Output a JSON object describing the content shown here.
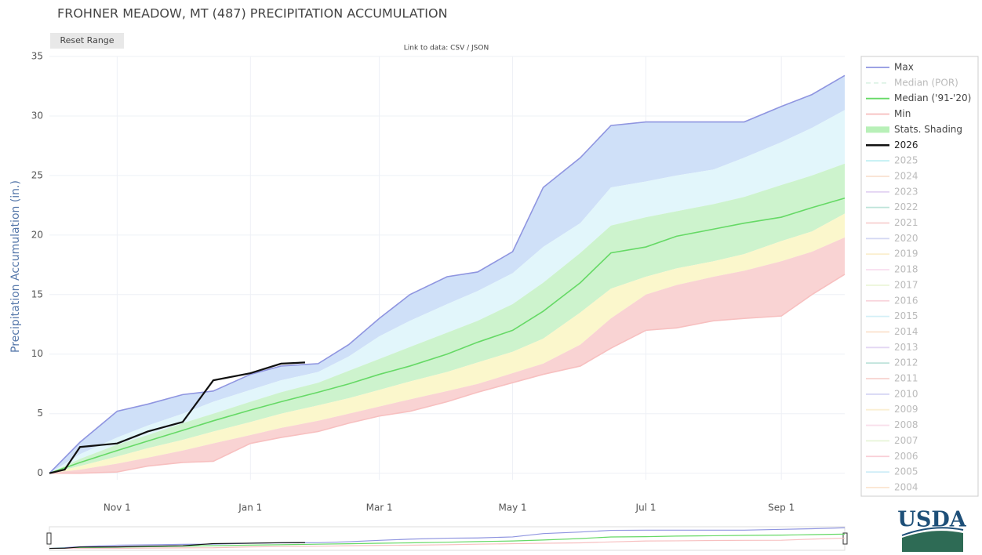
{
  "chart_data": {
    "type": "line",
    "title": "FROHNER MEADOW, MT (487) PRECIPITATION ACCUMULATION",
    "button": "Reset Range",
    "data_link": "Link to data: CSV / JSON",
    "logo": "USDA",
    "y_label": "Precipitation Accumulation (in.)",
    "x": [
      "Oct 1",
      "Oct 15",
      "Nov 1",
      "Nov 15",
      "Dec 1",
      "Dec 15",
      "Jan 1",
      "Jan 15",
      "Feb 1",
      "Feb 15",
      "Mar 1",
      "Mar 15",
      "Apr 1",
      "Apr 15",
      "May 1",
      "May 15",
      "Jun 1",
      "Jun 15",
      "Jul 1",
      "Jul 15",
      "Aug 1",
      "Aug 15",
      "Sep 1",
      "Sep 15",
      "Sep 30"
    ],
    "xticks": [
      "Nov 1",
      "Jan 1",
      "Mar 1",
      "May 1",
      "Jul 1",
      "Sep 1"
    ],
    "ylim": [
      -0.55,
      35
    ],
    "yticks": [
      0,
      5,
      10,
      15,
      20,
      25,
      30,
      35
    ],
    "grid": true,
    "legend": "right",
    "series": [
      {
        "name": "Max",
        "color": "#8f95e0",
        "values": [
          0,
          2.6,
          5.2,
          5.8,
          6.6,
          6.9,
          8.3,
          9.0,
          9.2,
          10.8,
          13.0,
          15.0,
          16.5,
          16.9,
          18.6,
          24.0,
          26.5,
          29.2,
          29.5,
          29.5,
          29.5,
          29.5,
          30.8,
          31.8,
          33.4
        ]
      },
      {
        "name": "Median (POR)",
        "color": "#bfe8cf",
        "dash": true,
        "visible": false
      },
      {
        "name": "Median ('91-'20)",
        "color": "#66d966",
        "values": [
          0,
          0.9,
          1.9,
          2.7,
          3.6,
          4.4,
          5.3,
          6.0,
          6.8,
          7.5,
          8.3,
          9.0,
          10.0,
          11.0,
          12.0,
          13.6,
          16.0,
          18.5,
          19.0,
          19.9,
          20.5,
          21.0,
          21.5,
          22.3,
          23.1
        ]
      },
      {
        "name": "Min",
        "color": "#f7c0c0",
        "values": [
          0,
          0,
          0.1,
          0.6,
          0.9,
          1.0,
          2.5,
          3.0,
          3.5,
          4.2,
          4.8,
          5.2,
          6.0,
          6.8,
          7.6,
          8.3,
          9.0,
          10.5,
          12.0,
          12.2,
          12.8,
          13.0,
          13.2,
          15.0,
          16.7
        ]
      },
      {
        "name": "Stats. Shading",
        "color": "#b8f0b8",
        "boundaries": [
          [
            0,
            1.6,
            3.0,
            4.0,
            5.0,
            6.0,
            7.0,
            7.8,
            8.5,
            9.8,
            11.5,
            12.8,
            14.2,
            15.3,
            16.8,
            19.0,
            21.0,
            24.0,
            24.5,
            25.0,
            25.5,
            26.5,
            27.8,
            29.0,
            30.5
          ],
          [
            0,
            1.2,
            2.4,
            3.2,
            4.2,
            5.0,
            6.0,
            6.8,
            7.6,
            8.6,
            9.6,
            10.6,
            11.8,
            12.8,
            14.2,
            16.0,
            18.5,
            20.8,
            21.5,
            22.0,
            22.6,
            23.2,
            24.2,
            25.0,
            26.0
          ],
          [
            0,
            0.6,
            1.4,
            2.1,
            2.8,
            3.5,
            4.3,
            5.0,
            5.7,
            6.3,
            7.0,
            7.7,
            8.5,
            9.3,
            10.2,
            11.3,
            13.5,
            15.5,
            16.5,
            17.2,
            17.8,
            18.4,
            19.5,
            20.3,
            21.8
          ],
          [
            0,
            0.3,
            0.8,
            1.3,
            1.9,
            2.5,
            3.2,
            3.8,
            4.4,
            5.0,
            5.6,
            6.2,
            6.9,
            7.5,
            8.4,
            9.2,
            10.8,
            13.0,
            15.0,
            15.8,
            16.5,
            17.0,
            17.8,
            18.6,
            19.8
          ]
        ],
        "fills": [
          "#cfe0f8",
          "#e2f6fb",
          "#cdf3cd",
          "#fbf7cc",
          "#f9d3d3"
        ]
      },
      {
        "name": "2026",
        "color": "#111111",
        "x": [
          "Oct 1",
          "Oct 8",
          "Oct 15",
          "Nov 1",
          "Nov 15",
          "Dec 1",
          "Dec 15",
          "Jan 1",
          "Jan 15",
          "Jan 26"
        ],
        "values": [
          0,
          0.3,
          2.2,
          2.5,
          3.5,
          4.3,
          7.8,
          8.4,
          9.2,
          9.3
        ]
      },
      {
        "name": "2025",
        "color": "#7fe0e6",
        "visible": false
      },
      {
        "name": "2024",
        "color": "#f5c8a8",
        "visible": false
      },
      {
        "name": "2023",
        "color": "#c8a8e6",
        "visible": false
      },
      {
        "name": "2022",
        "color": "#7fc8b4",
        "visible": false
      },
      {
        "name": "2021",
        "color": "#f0a0a0",
        "visible": false
      },
      {
        "name": "2020",
        "color": "#a8b0e8",
        "visible": false
      },
      {
        "name": "2019",
        "color": "#f8e0a0",
        "visible": false
      },
      {
        "name": "2018",
        "color": "#f4c0e0",
        "visible": false
      },
      {
        "name": "2017",
        "color": "#d8ecb0",
        "visible": false
      },
      {
        "name": "2016",
        "color": "#f4a8b8",
        "visible": false
      },
      {
        "name": "2015",
        "color": "#a8e0f0",
        "visible": false
      },
      {
        "name": "2014",
        "color": "#f8c8a0",
        "visible": false
      },
      {
        "name": "2013",
        "color": "#c8b0e8",
        "visible": false
      },
      {
        "name": "2012",
        "color": "#80c8b8",
        "visible": false
      },
      {
        "name": "2011",
        "color": "#f0a8a0",
        "visible": false
      },
      {
        "name": "2010",
        "color": "#a8a8e8",
        "visible": false
      },
      {
        "name": "2009",
        "color": "#f8e0a8",
        "visible": false
      },
      {
        "name": "2008",
        "color": "#f4c0d8",
        "visible": false
      },
      {
        "name": "2007",
        "color": "#d0ecb0",
        "visible": false
      },
      {
        "name": "2006",
        "color": "#f4a0b0",
        "visible": false
      },
      {
        "name": "2005",
        "color": "#a0dcf0",
        "visible": false
      },
      {
        "name": "2004",
        "color": "#f8d0a8",
        "visible": false
      }
    ]
  }
}
